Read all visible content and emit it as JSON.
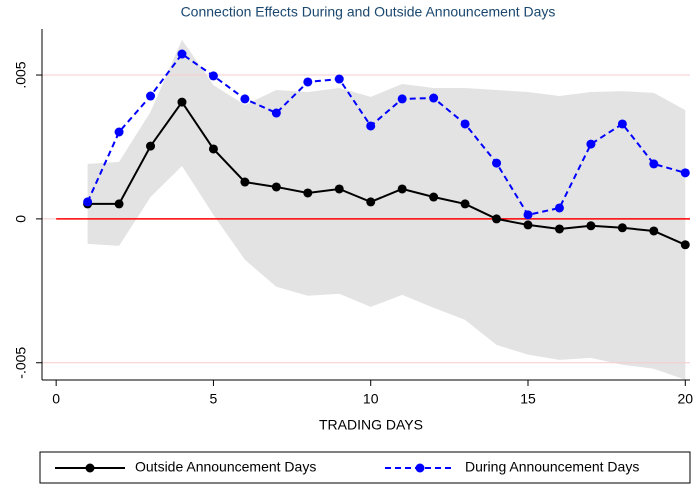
{
  "chart_data": {
    "type": "line",
    "title": "Connection Effects During and Outside Announcement Days",
    "x_label": "TRADING DAYS",
    "x": [
      1,
      2,
      3,
      4,
      5,
      6,
      7,
      8,
      9,
      10,
      11,
      12,
      13,
      14,
      15,
      16,
      17,
      18,
      19,
      20
    ],
    "series": [
      {
        "name": "Outside Announcement Days",
        "color": "#000000",
        "dash": false,
        "values": [
          0.00052,
          0.00052,
          0.00253,
          0.00406,
          0.00243,
          0.00128,
          0.00111,
          0.0009,
          0.00104,
          0.00059,
          0.00104,
          0.00076,
          0.00052,
          0,
          -0.00021,
          -0.00035,
          -0.00024,
          -0.00031,
          -0.00042,
          -0.0009
        ]
      },
      {
        "name": "During Announcement Days",
        "color": "#0000ff",
        "dash": true,
        "values": [
          0.00059,
          0.00302,
          0.00427,
          0.00573,
          0.00497,
          0.00417,
          0.00368,
          0.00476,
          0.00486,
          0.00323,
          0.00417,
          0.0042,
          0.0033,
          0.00194,
          0.00014,
          0.00038,
          0.0026,
          0.0033,
          0.00191,
          0.0016
        ]
      }
    ],
    "band": {
      "color": "#e3e3e3",
      "upper": [
        0.00191,
        0.00198,
        0.00372,
        0.00622,
        0.00465,
        0.00396,
        0.00448,
        0.00441,
        0.00455,
        0.00424,
        0.00469,
        0.00455,
        0.00455,
        0.00448,
        0.00441,
        0.00427,
        0.00441,
        0.00444,
        0.00438,
        0.00378
      ],
      "lower": [
        -0.00087,
        -0.00094,
        0.00076,
        0.00184,
        0.00014,
        -0.00142,
        -0.00236,
        -0.00267,
        -0.0026,
        -0.00306,
        -0.00264,
        -0.00309,
        -0.00351,
        -0.00438,
        -0.00472,
        -0.0049,
        -0.00483,
        -0.00507,
        -0.00521,
        -0.00559
      ]
    },
    "reference_line": {
      "value": 0,
      "color": "#ff0000"
    },
    "xlim": [
      -0.45,
      20.15
    ],
    "ylim": [
      -0.0056,
      0.0066
    ],
    "xticks": [
      0,
      5,
      10,
      15,
      20
    ],
    "yticks": [
      {
        "value": -0.005,
        "label": "-.005"
      },
      0,
      {
        "value": 0.005,
        "label": ".005"
      }
    ],
    "grid": true
  }
}
